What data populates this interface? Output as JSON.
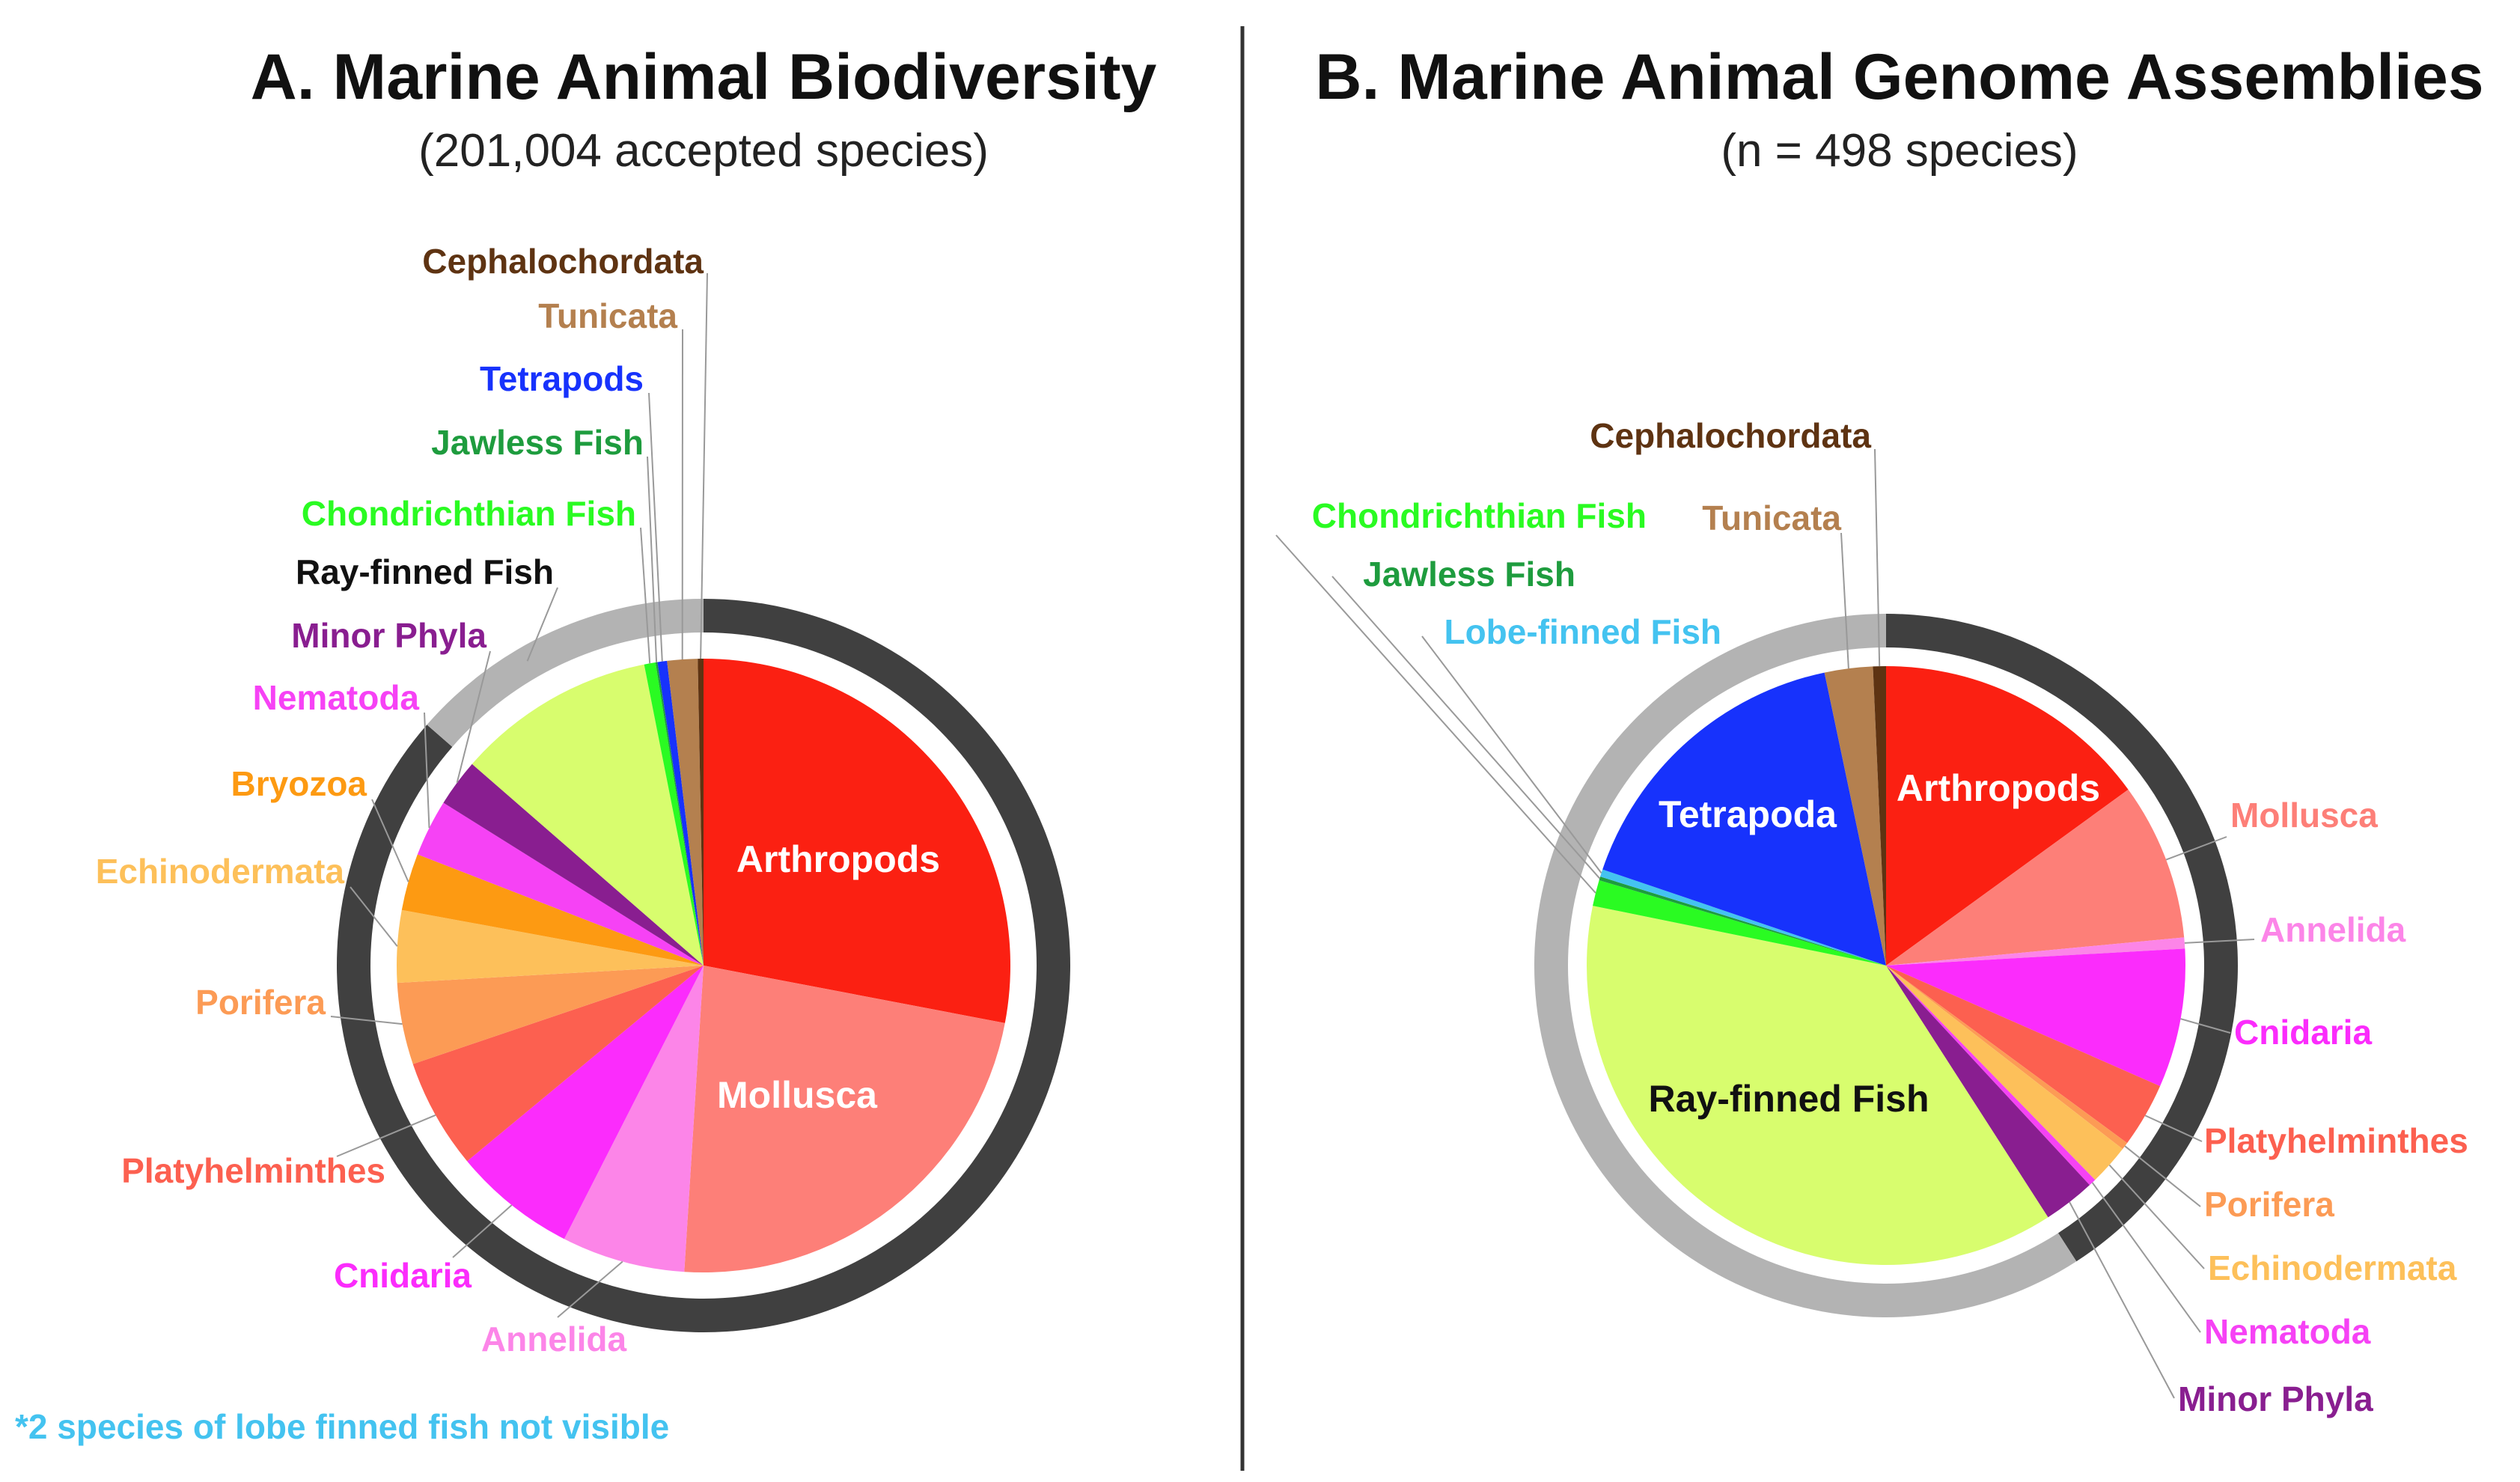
{
  "colors": {
    "arthropods": "#fb2012",
    "mollusca": "#fd7f78",
    "annelida": "#fc85e8",
    "cnidaria": "#fb2cfc",
    "platyhelminthes": "#fc6050",
    "porifera": "#fc9b55",
    "echinodermata": "#fdc05a",
    "bryozoa": "#fd9a12",
    "nematoda": "#f642f5",
    "minor_phyla": "#891e90",
    "ray_finned": "#d8fd6e",
    "lobe_finned": "#44c3f0",
    "chondrichthian": "#2afb22",
    "jawless": "#1e9c3e",
    "tetrapods": "#1732fc",
    "tunicata": "#b4804f",
    "cephalochordata": "#5e3312",
    "ring_dark": "#404040",
    "ring_light": "#b3b3b3"
  },
  "chart_data": [
    {
      "type": "pie",
      "title": "A. Marine Animal Biodiversity",
      "subtitle": "(201,004 accepted species)",
      "note": "*2 species of lobe finned fish not visible",
      "slices": [
        {
          "key": "arthropods",
          "label": "Arthropods",
          "percent": 28.0,
          "inside": true
        },
        {
          "key": "mollusca",
          "label": "Mollusca",
          "percent": 23.0,
          "inside": true
        },
        {
          "key": "annelida",
          "label": "Annelida",
          "percent": 6.5
        },
        {
          "key": "cnidaria",
          "label": "Cnidaria",
          "percent": 6.5
        },
        {
          "key": "platyhelminthes",
          "label": "Platyhelminthes",
          "percent": 5.8
        },
        {
          "key": "porifera",
          "label": "Porifera",
          "percent": 4.3
        },
        {
          "key": "echinodermata",
          "label": "Echinodermata",
          "percent": 3.8
        },
        {
          "key": "bryozoa",
          "label": "Bryozoa",
          "percent": 3.0
        },
        {
          "key": "nematoda",
          "label": "Nematoda",
          "percent": 3.0
        },
        {
          "key": "minor_phyla",
          "label": "Minor Phyla",
          "percent": 2.5
        },
        {
          "key": "ray_finned",
          "label": "Ray-finned Fish",
          "percent": 10.5
        },
        {
          "key": "chondrichthian",
          "label": "Chondrichthian Fish",
          "percent": 0.6
        },
        {
          "key": "jawless",
          "label": "Jawless Fish",
          "percent": 0.1
        },
        {
          "key": "tetrapods",
          "label": "Tetrapods",
          "percent": 0.5
        },
        {
          "key": "tunicata",
          "label": "Tunicata",
          "percent": 1.6
        },
        {
          "key": "cephalochordata",
          "label": "Cephalochordata",
          "percent": 0.3
        }
      ],
      "ring": [
        {
          "group": "invertebrates",
          "percent": 86.4,
          "color_key": "ring_dark"
        },
        {
          "group": "chordates",
          "percent": 13.6,
          "color_key": "ring_light"
        }
      ]
    },
    {
      "type": "pie",
      "title": "B. Marine Animal Genome Assemblies",
      "subtitle": "(n = 498 species)",
      "slices": [
        {
          "key": "arthropods",
          "label": "Arthropods",
          "percent": 15.0,
          "inside": true
        },
        {
          "key": "mollusca",
          "label": "Mollusca",
          "percent": 8.5
        },
        {
          "key": "annelida",
          "label": "Annelida",
          "percent": 0.6
        },
        {
          "key": "cnidaria",
          "label": "Cnidaria",
          "percent": 7.5
        },
        {
          "key": "platyhelminthes",
          "label": "Platyhelminthes",
          "percent": 3.5
        },
        {
          "key": "porifera",
          "label": "Porifera",
          "percent": 0.4
        },
        {
          "key": "echinodermata",
          "label": "Echinodermata",
          "percent": 2.2
        },
        {
          "key": "nematoda",
          "label": "Nematoda",
          "percent": 0.4
        },
        {
          "key": "minor_phyla",
          "label": "Minor Phyla",
          "percent": 2.8
        },
        {
          "key": "ray_finned",
          "label": "Ray-finned Fish",
          "percent": 37.3,
          "inside": true
        },
        {
          "key": "chondrichthian",
          "label": "Chondrichthian Fish",
          "percent": 1.4
        },
        {
          "key": "jawless",
          "label": "Jawless Fish",
          "percent": 0.2
        },
        {
          "key": "lobe_finned",
          "label": "Lobe-finned Fish",
          "percent": 0.4
        },
        {
          "key": "tetrapods",
          "label": "Tetrapoda",
          "percent": 16.5,
          "inside": true
        },
        {
          "key": "tunicata",
          "label": "Tunicata",
          "percent": 2.6
        },
        {
          "key": "cephalochordata",
          "label": "Cephalochordata",
          "percent": 0.7
        }
      ],
      "ring": [
        {
          "group": "invertebrates",
          "percent": 40.9,
          "color_key": "ring_dark"
        },
        {
          "group": "chordates",
          "percent": 59.1,
          "color_key": "ring_light"
        }
      ]
    }
  ]
}
